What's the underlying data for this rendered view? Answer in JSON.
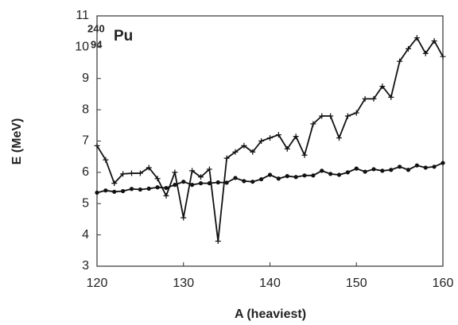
{
  "chart_data": {
    "type": "line",
    "annotation": {
      "mass": "240",
      "atomic": "94",
      "element": "Pu"
    },
    "xlabel": "A (heaviest)",
    "ylabel": "E (MeV)",
    "x": [
      120,
      121,
      122,
      123,
      124,
      125,
      126,
      127,
      128,
      129,
      130,
      131,
      132,
      133,
      134,
      135,
      136,
      137,
      138,
      139,
      140,
      141,
      142,
      143,
      144,
      145,
      146,
      147,
      148,
      149,
      150,
      151,
      152,
      153,
      154,
      155,
      156,
      157,
      158,
      159,
      160
    ],
    "series": [
      {
        "color": "#111111",
        "marker": "plus",
        "values": [
          6.85,
          6.4,
          5.65,
          5.95,
          5.97,
          5.97,
          6.15,
          5.8,
          5.25,
          6.0,
          4.55,
          6.05,
          5.85,
          6.1,
          3.8,
          6.45,
          6.65,
          6.85,
          6.65,
          7.0,
          7.1,
          7.2,
          6.75,
          7.15,
          6.55,
          7.55,
          7.8,
          7.8,
          7.1,
          7.8,
          7.9,
          8.35,
          8.35,
          8.75,
          8.4,
          9.55,
          9.95,
          10.3,
          9.8,
          10.2,
          9.7
        ]
      },
      {
        "color": "#111111",
        "marker": "dot",
        "values": [
          5.35,
          5.42,
          5.38,
          5.4,
          5.47,
          5.45,
          5.48,
          5.52,
          5.5,
          5.6,
          5.7,
          5.6,
          5.65,
          5.65,
          5.68,
          5.67,
          5.82,
          5.72,
          5.7,
          5.78,
          5.92,
          5.8,
          5.88,
          5.85,
          5.9,
          5.9,
          6.05,
          5.95,
          5.92,
          6.0,
          6.12,
          6.02,
          6.1,
          6.05,
          6.08,
          6.18,
          6.08,
          6.22,
          6.15,
          6.18,
          6.3
        ]
      }
    ],
    "xlim": [
      120,
      160
    ],
    "xticks": [
      120,
      130,
      140,
      150,
      160
    ],
    "ylim": [
      3,
      11
    ],
    "yticks": [
      3,
      4,
      5,
      6,
      7,
      8,
      9,
      10,
      11
    ],
    "grid": false
  }
}
